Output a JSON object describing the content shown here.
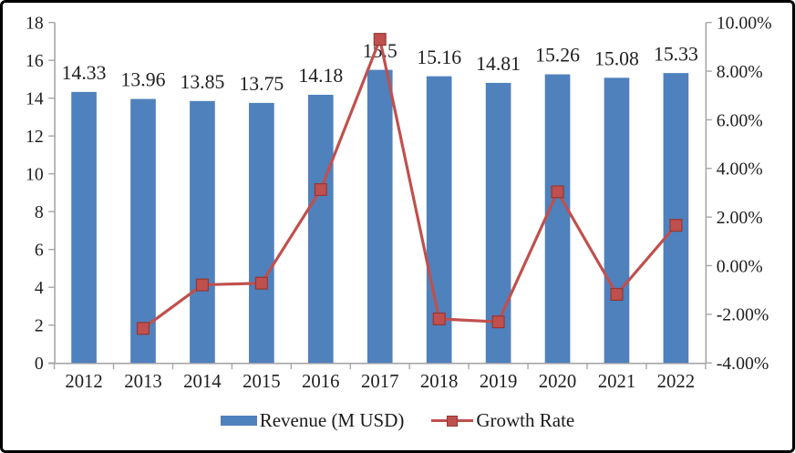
{
  "window": {
    "background": "#ffffff",
    "frame_border_color": "#000000"
  },
  "chart_data": {
    "type": "bar+line",
    "title": "",
    "categories": [
      "2012",
      "2013",
      "2014",
      "2015",
      "2016",
      "2017",
      "2018",
      "2019",
      "2020",
      "2021",
      "2022"
    ],
    "series": [
      {
        "name": "Revenue (M USD)",
        "type": "bar",
        "axis": "left",
        "color": "#4F81BD",
        "values": [
          14.33,
          13.96,
          13.85,
          13.75,
          14.18,
          15.5,
          15.16,
          14.81,
          15.26,
          15.08,
          15.33
        ],
        "value_labels": [
          "14.33",
          "13.96",
          "13.85",
          "13.75",
          "14.18",
          "15.5",
          "15.16",
          "14.81",
          "15.26",
          "15.08",
          "15.33"
        ]
      },
      {
        "name": "Growth Rate",
        "type": "line",
        "axis": "right",
        "color": "#C0504D",
        "marker": "square",
        "marker_border": "#943634",
        "values": [
          null,
          -2.58,
          -0.79,
          -0.72,
          3.13,
          9.31,
          -2.19,
          -2.31,
          3.04,
          -1.18,
          1.66
        ]
      }
    ],
    "left_axis": {
      "min": 0,
      "max": 18,
      "step": 2,
      "tick_labels": [
        "0",
        "2",
        "4",
        "6",
        "8",
        "10",
        "12",
        "14",
        "16",
        "18"
      ]
    },
    "right_axis": {
      "min": -4,
      "max": 10,
      "step": 2,
      "unit": "%",
      "tick_labels": [
        "-4.00%",
        "-2.00%",
        "0.00%",
        "2.00%",
        "4.00%",
        "6.00%",
        "8.00%",
        "10.00%"
      ]
    },
    "grid": false,
    "legend_position": "bottom",
    "axis_line_color": "#A6A6A6",
    "text_color": "#1f1f1f"
  }
}
